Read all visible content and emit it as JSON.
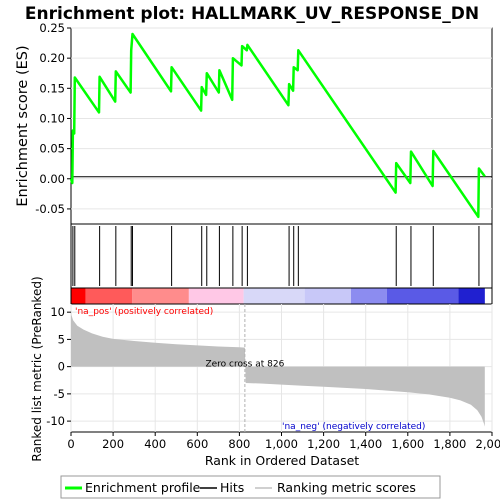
{
  "chart_data": [
    {
      "type": "line",
      "title": "Enrichment plot: HALLMARK_UV_RESPONSE_DN",
      "ylabel": "Enrichment score (ES)",
      "ylim": [
        -0.075,
        0.25
      ],
      "xlim": [
        0,
        2000
      ],
      "grid": true,
      "y_ticks": [
        -0.05,
        0.0,
        0.05,
        0.1,
        0.15,
        0.2,
        0.25
      ],
      "y_tick_labels": [
        "-0.05",
        "0.00",
        "0.05",
        "0.10",
        "0.15",
        "0.20",
        "0.25"
      ],
      "series": [
        {
          "name": "Enrichment profile",
          "color": "#00ff00",
          "x": [
            0,
            6,
            9,
            15,
            18,
            133,
            136,
            210,
            213,
            283,
            286,
            292,
            475,
            478,
            618,
            621,
            642,
            645,
            702,
            705,
            766,
            769,
            810,
            813,
            835,
            838,
            1033,
            1036,
            1055,
            1058,
            1077,
            1080,
            1542,
            1545,
            1612,
            1615,
            1718,
            1721,
            1935,
            1938,
            1966
          ],
          "y": [
            0.0,
            -0.007,
            0.08,
            0.075,
            0.168,
            0.11,
            0.169,
            0.128,
            0.178,
            0.143,
            0.213,
            0.24,
            0.145,
            0.185,
            0.113,
            0.152,
            0.139,
            0.175,
            0.143,
            0.18,
            0.131,
            0.2,
            0.188,
            0.22,
            0.213,
            0.222,
            0.122,
            0.157,
            0.146,
            0.185,
            0.18,
            0.213,
            -0.023,
            0.026,
            -0.007,
            0.045,
            -0.012,
            0.046,
            -0.063,
            0.017,
            0.004
          ]
        }
      ]
    },
    {
      "type": "scatter",
      "series": [
        {
          "name": "Hits",
          "color": "#000000",
          "x": [
            9,
            18,
            136,
            213,
            286,
            292,
            478,
            621,
            645,
            705,
            769,
            813,
            838,
            1036,
            1058,
            1080,
            1545,
            1615,
            1721,
            1938
          ]
        }
      ]
    },
    {
      "type": "heatmap",
      "labels": [
        "'na_pos' (positively correlated)",
        "'na_neg' (negatively correlated)"
      ],
      "label_colors": [
        "#ff0000",
        "#0000cc"
      ],
      "segments": [
        {
          "from": 0,
          "to": 70,
          "color": "#ff0000"
        },
        {
          "from": 70,
          "to": 290,
          "color": "#ff5a5a"
        },
        {
          "from": 290,
          "to": 560,
          "color": "#ff8c8c"
        },
        {
          "from": 560,
          "to": 820,
          "color": "#ffc8e6"
        },
        {
          "from": 820,
          "to": 1110,
          "color": "#d8d8f8"
        },
        {
          "from": 1110,
          "to": 1330,
          "color": "#c8c8f8"
        },
        {
          "from": 1330,
          "to": 1500,
          "color": "#8c8cf0"
        },
        {
          "from": 1500,
          "to": 1840,
          "color": "#5a5ae6"
        },
        {
          "from": 1840,
          "to": 1966,
          "color": "#2020d0"
        }
      ]
    },
    {
      "type": "area",
      "ylabel": "Ranked list metric (PreRanked)",
      "xlabel": "Rank in Ordered Dataset",
      "ylim": [
        -12,
        11.5
      ],
      "xlim": [
        0,
        2000
      ],
      "grid": true,
      "y_ticks": [
        -10,
        -5,
        0,
        5,
        10
      ],
      "y_tick_labels": [
        "-10",
        "-5",
        "0",
        "5",
        "10"
      ],
      "x_ticks": [
        0,
        200,
        400,
        600,
        800,
        1000,
        1200,
        1400,
        1600,
        1800,
        2000
      ],
      "x_tick_labels": [
        "0",
        "200",
        "400",
        "600",
        "800",
        "1,000",
        "1,200",
        "1,400",
        "1,600",
        "1,800",
        "2,000"
      ],
      "fill_color": "#c0c0c0",
      "zero_cross": 826,
      "annotation": "Zero cross at 826",
      "x": [
        0,
        2,
        10,
        30,
        60,
        100,
        150,
        200,
        300,
        400,
        500,
        600,
        700,
        800,
        826,
        830,
        900,
        1000,
        1100,
        1200,
        1300,
        1400,
        1500,
        1600,
        1700,
        1800,
        1850,
        1900,
        1930,
        1950,
        1962,
        1966
      ],
      "values": [
        10.5,
        9.5,
        8.5,
        7.5,
        6.8,
        6.1,
        5.5,
        5.1,
        4.7,
        4.4,
        4.1,
        3.9,
        3.7,
        3.55,
        3.5,
        -3.0,
        -3.1,
        -3.3,
        -3.5,
        -3.7,
        -3.9,
        -4.1,
        -4.4,
        -4.7,
        -5.1,
        -5.7,
        -6.2,
        -7.0,
        -8.0,
        -9.2,
        -10.5,
        -11.0
      ]
    }
  ],
  "legend": [
    {
      "label": "Enrichment profile",
      "color": "#00ff00"
    },
    {
      "label": "Hits",
      "color": "#000000"
    },
    {
      "label": "Ranking metric scores",
      "color": "#c0c0c0"
    }
  ]
}
